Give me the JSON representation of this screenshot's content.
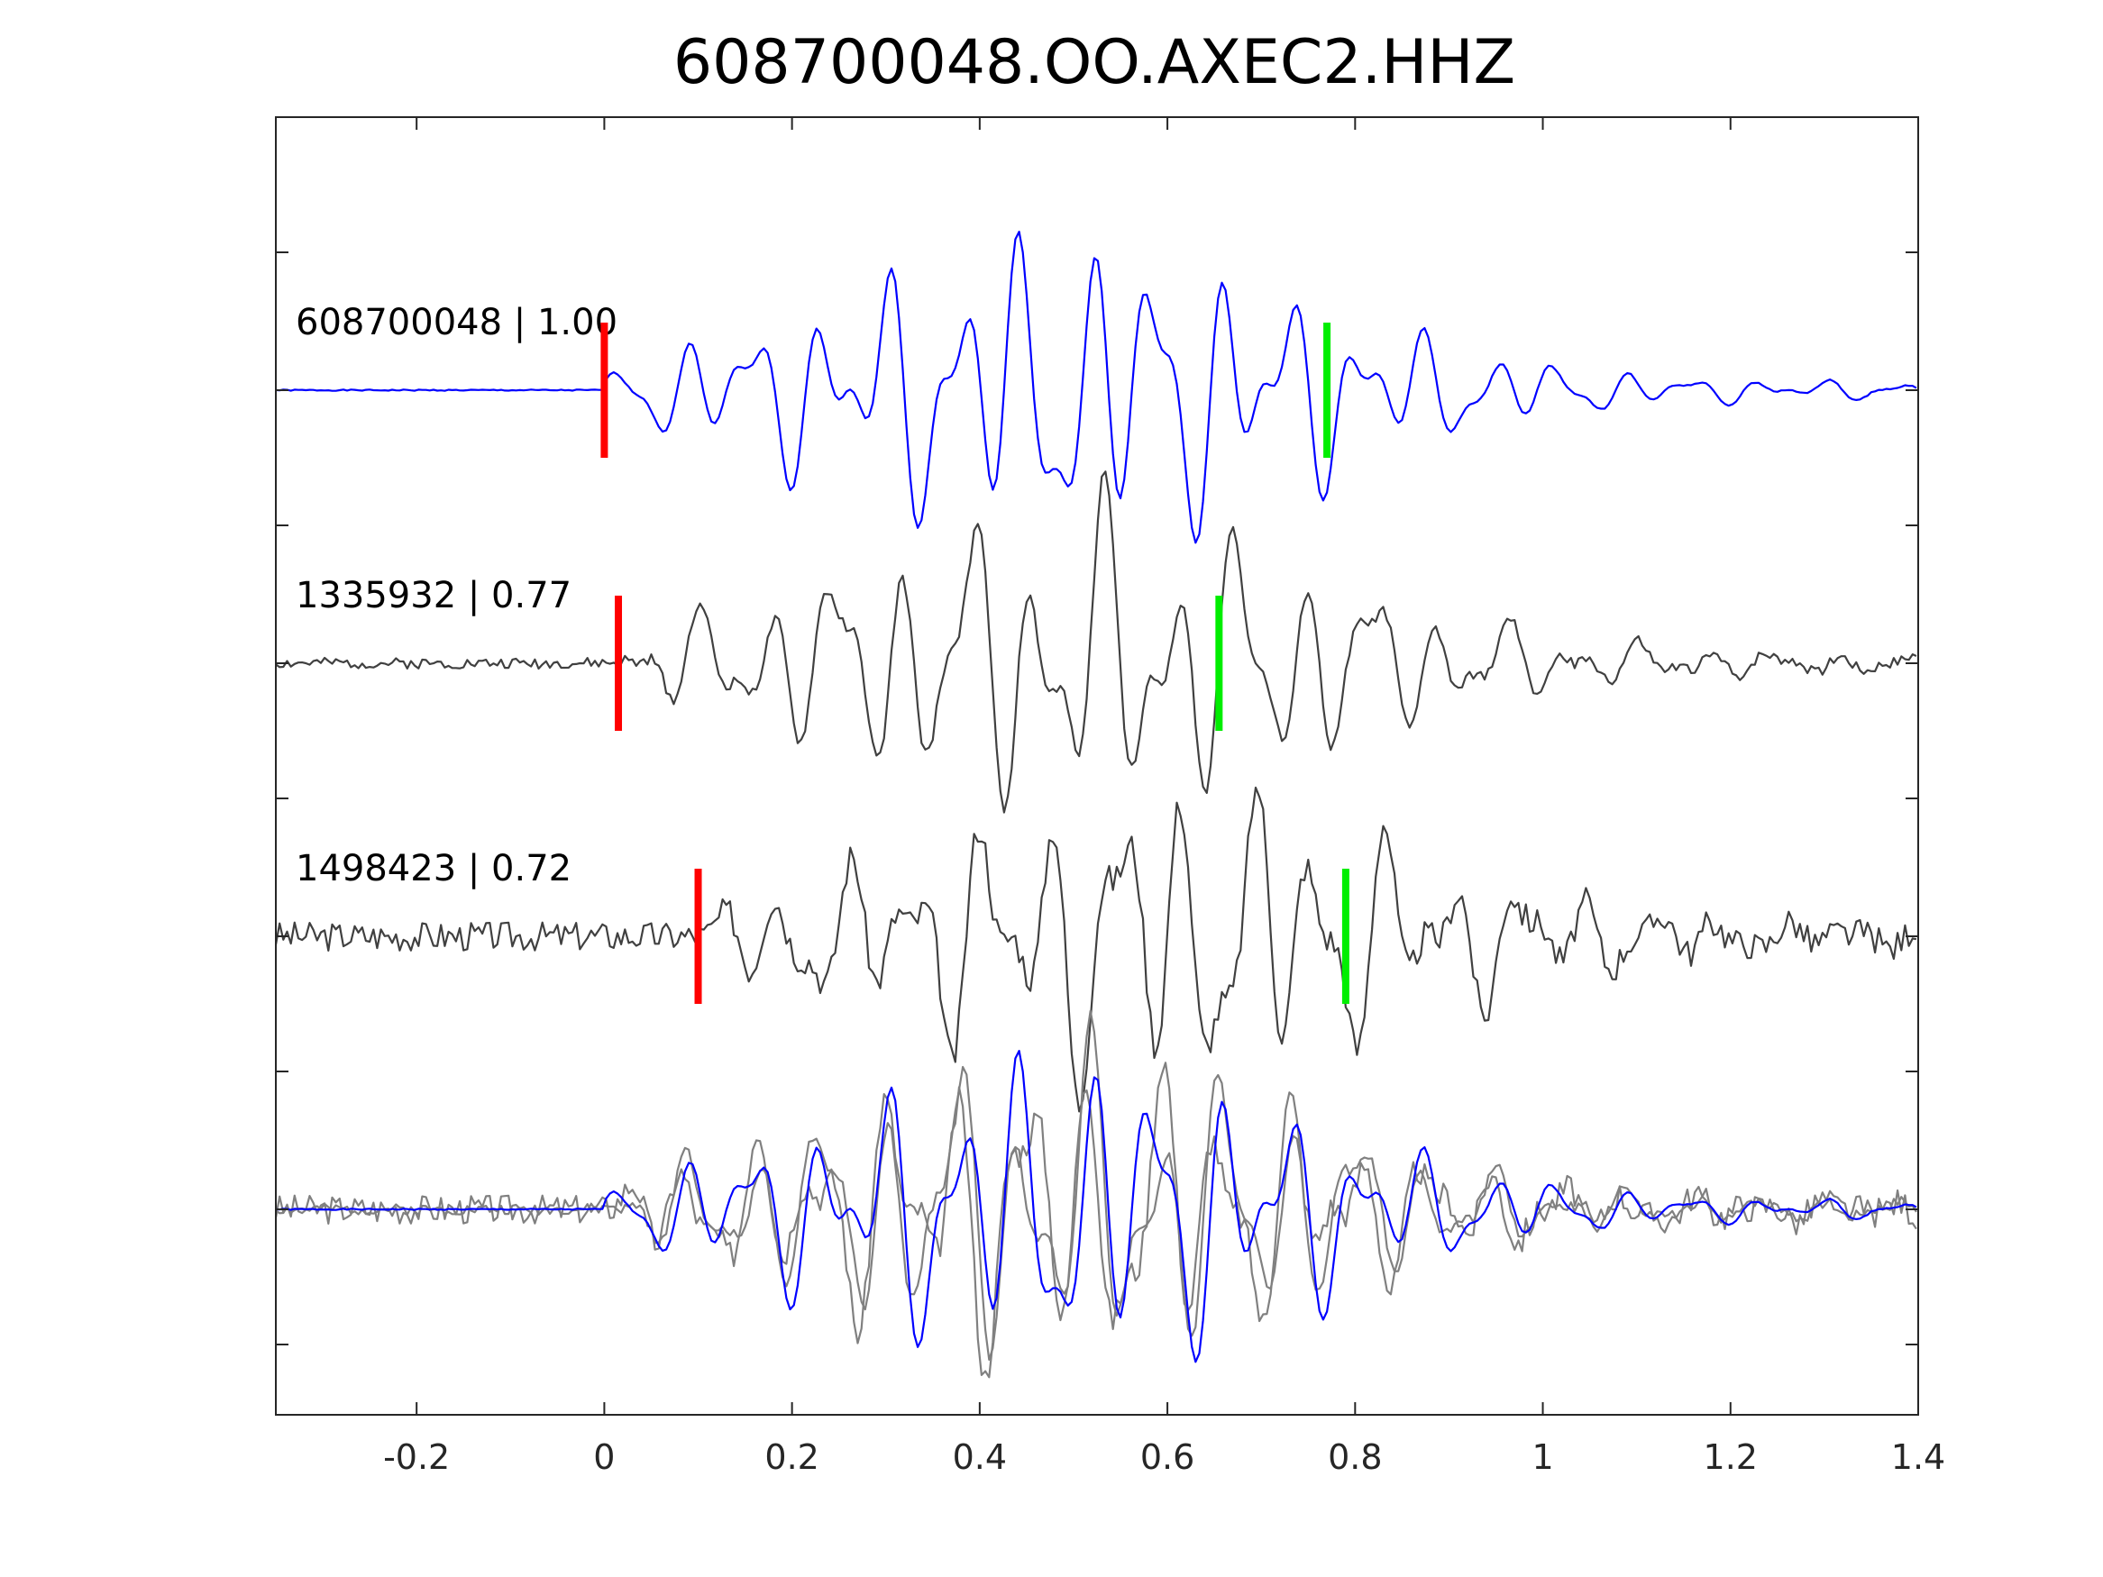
{
  "chart_data": {
    "type": "line",
    "title": "608700048.OO.AXEC2.HHZ",
    "xlabel": "",
    "ylabel": "",
    "xlim": [
      -0.35,
      1.4
    ],
    "x_ticks": [
      -0.2,
      0,
      0.2,
      0.4,
      0.6,
      0.8,
      1,
      1.2,
      1.4
    ],
    "x_tick_labels": [
      "-0.2",
      "0",
      "0.2",
      "0.4",
      "0.6",
      "0.8",
      "1",
      "1.2",
      "1.4"
    ],
    "y_ticks_shown_without_labels": true,
    "grid": false,
    "legend": "none",
    "colors": {
      "template": "#0000ff",
      "matched": "#404040",
      "overlay_matched": "#808080",
      "p_pick": "#ff0000",
      "s_pick": "#00ee00"
    },
    "series": [
      {
        "label": "608700048 | 1.00",
        "event_id": "608700048",
        "correlation": 1.0,
        "p_pick_time": 0.0,
        "s_pick_time": 0.77,
        "color": "#0000ff",
        "seed": 1,
        "noise": 0.01
      },
      {
        "label": "1335932 | 0.77",
        "event_id": "1335932",
        "correlation": 0.77,
        "p_pick_time": 0.015,
        "s_pick_time": 0.655,
        "color": "#404040",
        "seed": 2,
        "noise": 0.08
      },
      {
        "label": "1498423 | 0.72",
        "event_id": "1498423",
        "correlation": 0.72,
        "p_pick_time": 0.1,
        "s_pick_time": 0.79,
        "color": "#404040",
        "seed": 3,
        "noise": 0.22
      }
    ],
    "overlay": {
      "description_hidden": true
    }
  }
}
